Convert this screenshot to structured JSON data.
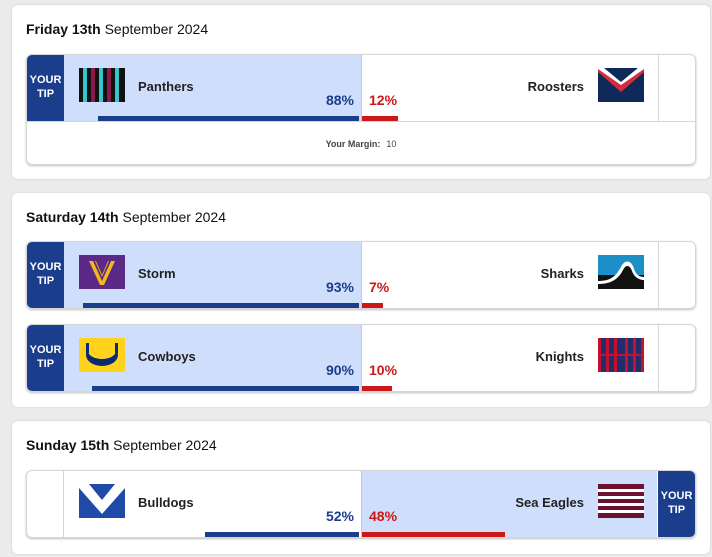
{
  "tip_label_line1": "YOUR",
  "tip_label_line2": "TIP",
  "days": [
    {
      "day_bold": "Friday 13th",
      "day_rest": "September 2024",
      "matches": [
        {
          "home_team": "Panthers",
          "away_team": "Roosters",
          "home_pct": "88%",
          "away_pct": "12%",
          "home_share": 0.88,
          "away_share": 0.12,
          "tipped": "home",
          "home_logo": "panthers-logo",
          "away_logo": "roosters-logo",
          "margin_label": "Your Margin:",
          "margin_value": "10"
        }
      ]
    },
    {
      "day_bold": "Saturday 14th",
      "day_rest": "September 2024",
      "matches": [
        {
          "home_team": "Storm",
          "away_team": "Sharks",
          "home_pct": "93%",
          "away_pct": "7%",
          "home_share": 0.93,
          "away_share": 0.07,
          "tipped": "home",
          "home_logo": "storm-logo",
          "away_logo": "sharks-logo"
        },
        {
          "home_team": "Cowboys",
          "away_team": "Knights",
          "home_pct": "90%",
          "away_pct": "10%",
          "home_share": 0.9,
          "away_share": 0.1,
          "tipped": "home",
          "home_logo": "cowboys-logo",
          "away_logo": "knights-logo"
        }
      ]
    },
    {
      "day_bold": "Sunday 15th",
      "day_rest": "September 2024",
      "matches": [
        {
          "home_team": "Bulldogs",
          "away_team": "Sea Eagles",
          "home_pct": "52%",
          "away_pct": "48%",
          "home_share": 0.52,
          "away_share": 0.48,
          "tipped": "away",
          "home_logo": "bulldogs-logo",
          "away_logo": "sea-eagles-logo"
        }
      ]
    }
  ],
  "colors": {
    "tip_blue": "#1a3d8c",
    "tip_red": "#cc1818",
    "tipped_shade": "#cfdffb"
  }
}
